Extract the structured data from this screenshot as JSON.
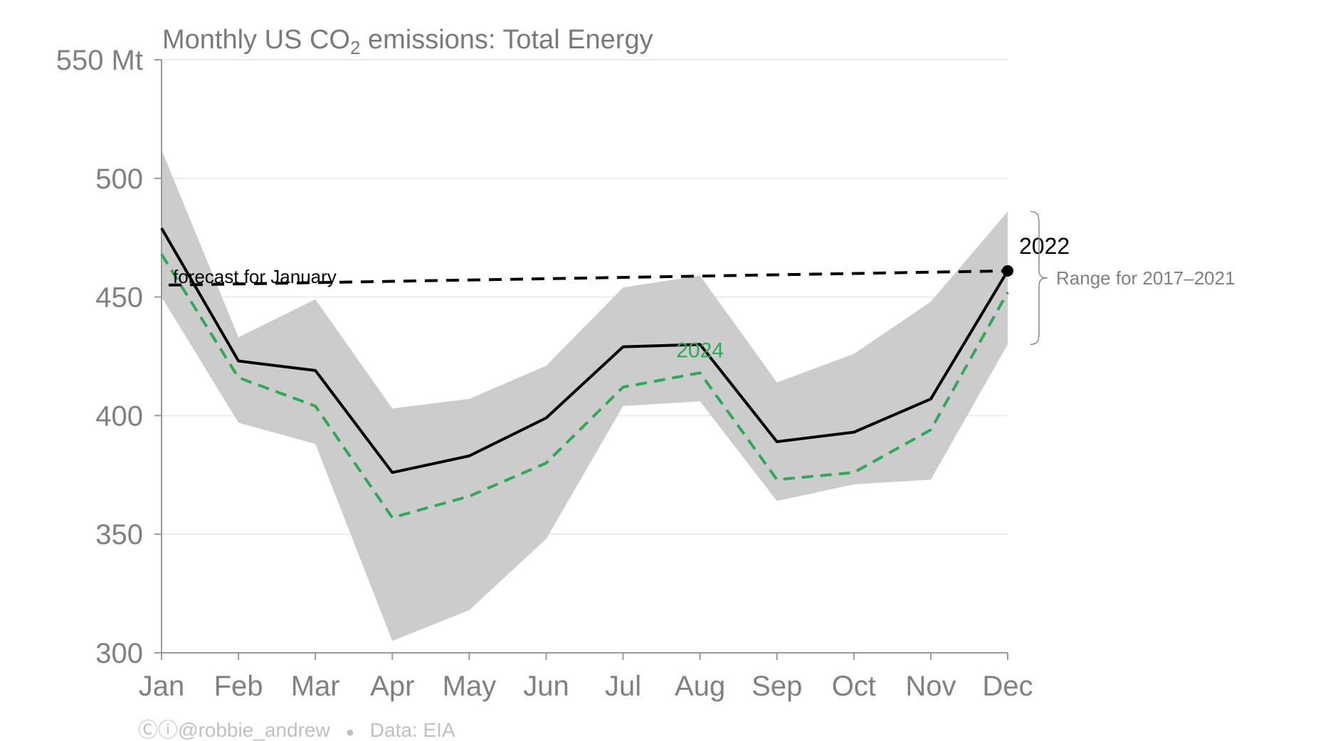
{
  "chart_data": {
    "type": "line",
    "title_parts": {
      "pre": "Monthly US CO",
      "sub": "2",
      "post": " emissions: Total Energy"
    },
    "categories": [
      "Jan",
      "Feb",
      "Mar",
      "Apr",
      "May",
      "Jun",
      "Jul",
      "Aug",
      "Sep",
      "Oct",
      "Nov",
      "Dec"
    ],
    "y_unit_label": "550 Mt",
    "ylim": [
      300,
      550
    ],
    "y_ticks": [
      {
        "value": 300,
        "label": "300"
      },
      {
        "value": 350,
        "label": "350"
      },
      {
        "value": 400,
        "label": "400"
      },
      {
        "value": 450,
        "label": "450"
      },
      {
        "value": 500,
        "label": "500"
      },
      {
        "value": 550,
        "label": "550 Mt"
      }
    ],
    "grid": true,
    "range_band": {
      "label": "Range for 2017–2021",
      "upper": [
        512,
        433,
        449,
        403,
        407,
        421,
        454,
        459,
        414,
        426,
        448,
        486
      ],
      "lower": [
        450,
        397,
        388,
        305,
        318,
        348,
        404,
        406,
        364,
        371,
        373,
        430
      ]
    },
    "series": [
      {
        "name": "2022",
        "color": "#000000",
        "style": "solid",
        "values": [
          479,
          423,
          419,
          376,
          383,
          399,
          429,
          430,
          389,
          393,
          407,
          461
        ]
      },
      {
        "name": "2024",
        "color": "#2eaa57",
        "style": "dashed",
        "values": [
          468,
          416,
          404,
          357,
          366,
          380,
          412,
          418,
          373,
          376,
          394,
          452
        ]
      }
    ],
    "forecast": {
      "label": "forecast for January",
      "start_value": 455,
      "end_value": 461
    },
    "highlight_point": {
      "category": "Dec",
      "value": 461,
      "label": "2022"
    },
    "series_label_2024": {
      "category": "Aug",
      "text": "2024"
    }
  },
  "footer": {
    "icons": "Ⓒⓘ",
    "handle": "@robbie_andrew",
    "separator": "●",
    "source": "Data: EIA"
  }
}
